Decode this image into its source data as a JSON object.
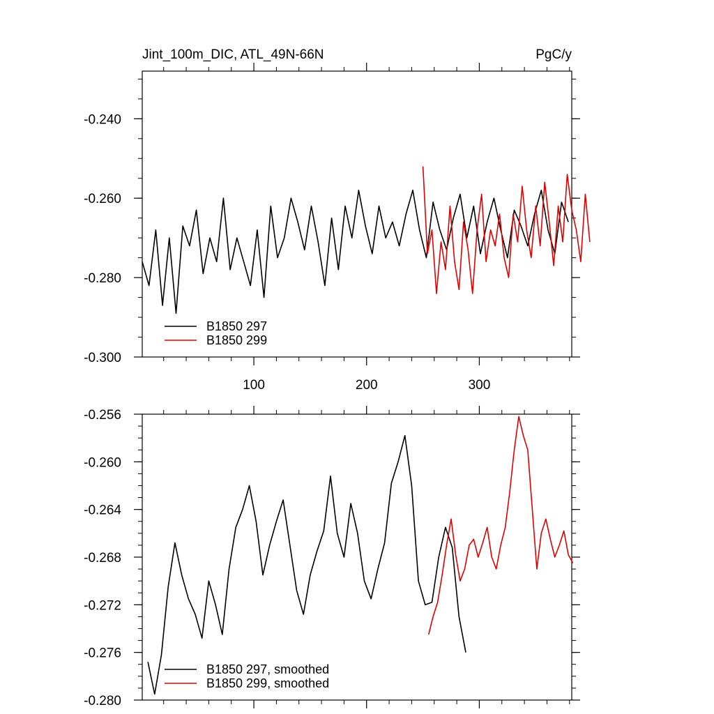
{
  "chart_data": [
    {
      "type": "line",
      "title": "Jint_100m_DIC, ATL_49N-66N",
      "units": "PgC/y",
      "xlim": [
        1,
        382
      ],
      "ylim": [
        -0.3,
        -0.228
      ],
      "xticks": [
        100,
        200,
        300
      ],
      "yticks": [
        -0.3,
        -0.28,
        -0.26,
        -0.24
      ],
      "ytick_labels": [
        "-0.300",
        "-0.280",
        "-0.260",
        "-0.240"
      ],
      "xtick_labels": [
        "100",
        "200",
        "300"
      ],
      "legend_position": "bottom-left",
      "series": [
        {
          "name": "B1850 297",
          "color": "#000000",
          "x_start": 1,
          "x_step": 6,
          "values": [
            -0.276,
            -0.282,
            -0.268,
            -0.287,
            -0.27,
            -0.289,
            -0.267,
            -0.272,
            -0.263,
            -0.279,
            -0.27,
            -0.276,
            -0.26,
            -0.278,
            -0.27,
            -0.276,
            -0.282,
            -0.268,
            -0.285,
            -0.262,
            -0.275,
            -0.27,
            -0.26,
            -0.266,
            -0.273,
            -0.262,
            -0.271,
            -0.282,
            -0.265,
            -0.278,
            -0.262,
            -0.27,
            -0.258,
            -0.267,
            -0.274,
            -0.262,
            -0.27,
            -0.266,
            -0.272,
            -0.264,
            -0.258,
            -0.268,
            -0.275,
            -0.261,
            -0.268,
            -0.273,
            -0.265,
            -0.259,
            -0.27,
            -0.262,
            -0.274,
            -0.266,
            -0.26,
            -0.268,
            -0.275,
            -0.263,
            -0.267,
            -0.272,
            -0.264,
            -0.258,
            -0.268,
            -0.274,
            -0.261,
            -0.266
          ]
        },
        {
          "name": "B1850 299",
          "color": "#e00000",
          "x_start": 250,
          "x_step": 4,
          "values": [
            -0.252,
            -0.274,
            -0.268,
            -0.284,
            -0.271,
            -0.278,
            -0.262,
            -0.276,
            -0.283,
            -0.266,
            -0.273,
            -0.284,
            -0.268,
            -0.259,
            -0.276,
            -0.268,
            -0.272,
            -0.264,
            -0.275,
            -0.28,
            -0.264,
            -0.271,
            -0.257,
            -0.268,
            -0.275,
            -0.262,
            -0.272,
            -0.256,
            -0.266,
            -0.277,
            -0.262,
            -0.271,
            -0.254,
            -0.263,
            -0.268,
            -0.276,
            -0.259,
            -0.271
          ]
        }
      ]
    },
    {
      "type": "line",
      "xlim": [
        1,
        382
      ],
      "ylim": [
        -0.28,
        -0.256
      ],
      "xticks": [
        100,
        200,
        300
      ],
      "yticks": [
        -0.28,
        -0.276,
        -0.272,
        -0.268,
        -0.264,
        -0.26,
        -0.256
      ],
      "ytick_labels": [
        "-0.280",
        "-0.276",
        "-0.272",
        "-0.268",
        "-0.264",
        "-0.260",
        "-0.256"
      ],
      "legend_position": "bottom-left",
      "series": [
        {
          "name": "B1850 297, smoothed",
          "color": "#000000",
          "x_start": 6,
          "x_step": 6,
          "values": [
            -0.2768,
            -0.2795,
            -0.2762,
            -0.2705,
            -0.2668,
            -0.2695,
            -0.2715,
            -0.2728,
            -0.2748,
            -0.27,
            -0.272,
            -0.2745,
            -0.269,
            -0.2655,
            -0.264,
            -0.262,
            -0.265,
            -0.2695,
            -0.267,
            -0.265,
            -0.2632,
            -0.267,
            -0.2708,
            -0.2728,
            -0.2695,
            -0.2675,
            -0.2658,
            -0.2612,
            -0.266,
            -0.268,
            -0.2635,
            -0.266,
            -0.27,
            -0.2715,
            -0.269,
            -0.2668,
            -0.2618,
            -0.26,
            -0.2578,
            -0.262,
            -0.27,
            -0.272,
            -0.2718,
            -0.268,
            -0.2655,
            -0.2672,
            -0.273,
            -0.276
          ]
        },
        {
          "name": "B1850 299, smoothed",
          "color": "#e00000",
          "x_start": 255,
          "x_step": 4,
          "values": [
            -0.2745,
            -0.273,
            -0.2718,
            -0.2695,
            -0.267,
            -0.2648,
            -0.2678,
            -0.27,
            -0.269,
            -0.267,
            -0.2665,
            -0.268,
            -0.2668,
            -0.2655,
            -0.268,
            -0.269,
            -0.267,
            -0.2655,
            -0.2625,
            -0.259,
            -0.2562,
            -0.2578,
            -0.259,
            -0.264,
            -0.269,
            -0.266,
            -0.2648,
            -0.2665,
            -0.268,
            -0.267,
            -0.2658,
            -0.2678,
            -0.2685
          ]
        }
      ]
    }
  ]
}
